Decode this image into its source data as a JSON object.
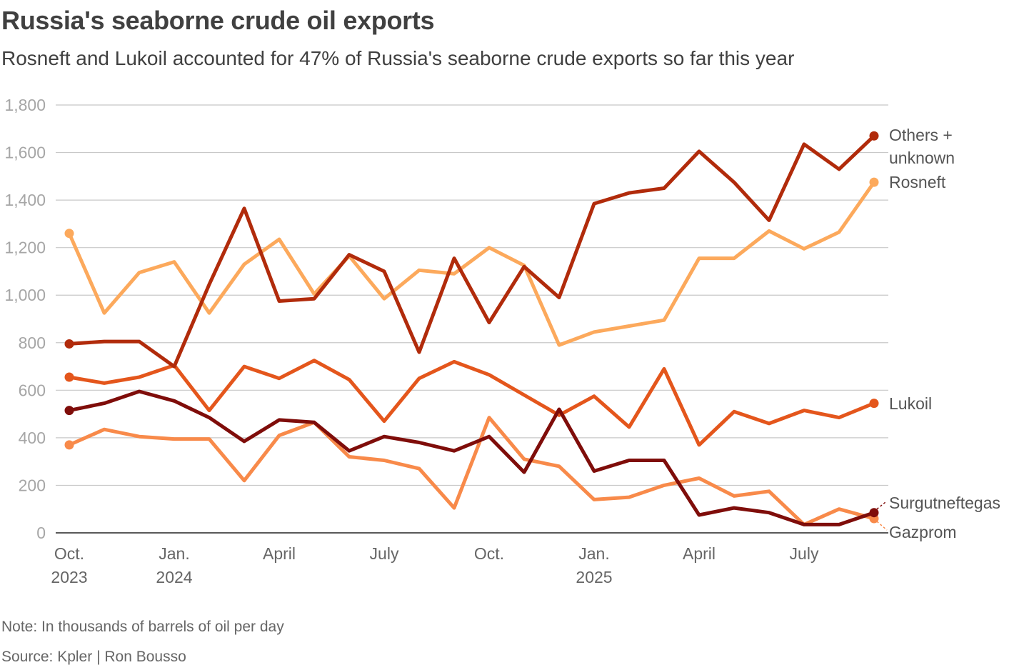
{
  "title": "Russia's seaborne crude oil exports",
  "subtitle": "Rosneft and Lukoil accounted for 47% of Russia's seaborne crude exports so far this year",
  "note": "Note: In thousands of barrels of oil per day",
  "source": "Source: Kpler | Ron Bousso",
  "chart_data": {
    "type": "line",
    "x": [
      "2023-10",
      "2023-11",
      "2023-12",
      "2024-01",
      "2024-02",
      "2024-03",
      "2024-04",
      "2024-05",
      "2024-06",
      "2024-07",
      "2024-08",
      "2024-09",
      "2024-10",
      "2024-11",
      "2024-12",
      "2025-01",
      "2025-02",
      "2025-03",
      "2025-04",
      "2025-05",
      "2025-06",
      "2025-07",
      "2025-08",
      "2025-09"
    ],
    "ylim": [
      0,
      1800
    ],
    "yticks": [
      0,
      200,
      400,
      600,
      800,
      1000,
      1200,
      1400,
      1600,
      1800
    ],
    "ytick_labels": [
      "0",
      "200",
      "400",
      "600",
      "800",
      "1,000",
      "1,200",
      "1,400",
      "1,600",
      "1,800"
    ],
    "xticks": [
      {
        "x": "2023-10",
        "line1": "Oct.",
        "line2": "2023"
      },
      {
        "x": "2024-01",
        "line1": "Jan.",
        "line2": "2024"
      },
      {
        "x": "2024-04",
        "line1": "April",
        "line2": ""
      },
      {
        "x": "2024-07",
        "line1": "July",
        "line2": ""
      },
      {
        "x": "2024-10",
        "line1": "Oct.",
        "line2": ""
      },
      {
        "x": "2025-01",
        "line1": "Jan.",
        "line2": "2025"
      },
      {
        "x": "2025-04",
        "line1": "April",
        "line2": ""
      },
      {
        "x": "2025-07",
        "line1": "July",
        "line2": ""
      }
    ],
    "grid": true,
    "series": [
      {
        "name": "Rosneft",
        "label_lines": [
          "Rosneft"
        ],
        "color": "#fca95c",
        "values": [
          1260,
          925,
          1095,
          1140,
          925,
          1130,
          1235,
          1005,
          1165,
          985,
          1105,
          1090,
          1200,
          1125,
          790,
          845,
          870,
          895,
          1155,
          1155,
          1270,
          1195,
          1265,
          1475
        ]
      },
      {
        "name": "Gazprom",
        "label_lines": [
          "Gazprom"
        ],
        "color": "#f88a4a",
        "values": [
          370,
          435,
          405,
          395,
          395,
          220,
          410,
          465,
          320,
          305,
          270,
          105,
          485,
          310,
          280,
          140,
          150,
          200,
          230,
          155,
          175,
          35,
          100,
          60
        ]
      },
      {
        "name": "Lukoil",
        "label_lines": [
          "Lukoil"
        ],
        "color": "#e4561c",
        "values": [
          655,
          630,
          655,
          705,
          515,
          700,
          650,
          725,
          645,
          470,
          650,
          720,
          665,
          580,
          495,
          575,
          445,
          690,
          370,
          510,
          460,
          515,
          485,
          545
        ]
      },
      {
        "name": "Others + unknown",
        "label_lines": [
          "Others +",
          "unknown"
        ],
        "color": "#b12b0b",
        "values": [
          795,
          805,
          805,
          700,
          1045,
          1365,
          975,
          985,
          1170,
          1100,
          760,
          1155,
          885,
          1120,
          990,
          1385,
          1430,
          1450,
          1605,
          1475,
          1315,
          1635,
          1530,
          1670
        ]
      },
      {
        "name": "Surgutneftegas",
        "label_lines": [
          "Surgutneftegas"
        ],
        "color": "#7f0d0a",
        "values": [
          515,
          545,
          595,
          555,
          485,
          385,
          475,
          465,
          345,
          405,
          380,
          345,
          405,
          255,
          520,
          260,
          305,
          305,
          75,
          105,
          85,
          35,
          35,
          85
        ]
      }
    ]
  }
}
